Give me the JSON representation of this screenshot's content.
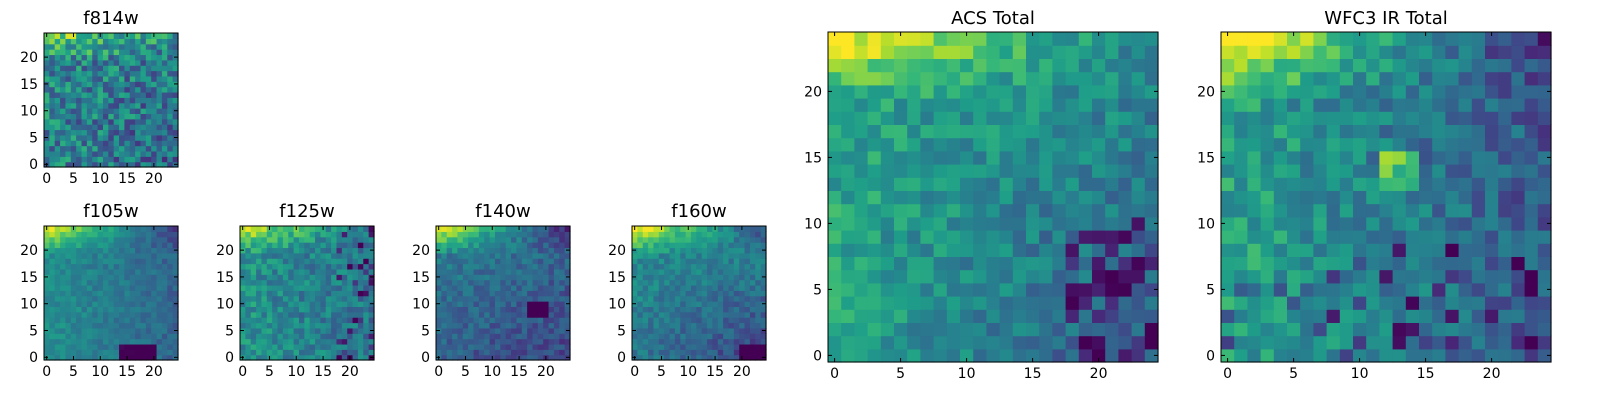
{
  "chart_data": [
    {
      "type": "heatmap",
      "title": "f814w",
      "xticks": [
        0,
        5,
        10,
        15,
        20
      ],
      "yticks": [
        0,
        5,
        10,
        15,
        20
      ],
      "xlim": [
        -0.5,
        24.5
      ],
      "ylim": [
        -0.5,
        24.5
      ],
      "grid_size": [
        25,
        25
      ],
      "colormap": "viridis",
      "pattern": "brightest along the top rows (y 22-24), noisy green field, darker pixels toward lower right"
    },
    {
      "type": "heatmap",
      "title": "f105w",
      "xticks": [
        0,
        5,
        10,
        15,
        20
      ],
      "yticks": [
        0,
        5,
        10,
        15,
        20
      ],
      "xlim": [
        -0.5,
        24.5
      ],
      "ylim": [
        -0.5,
        24.5
      ],
      "grid_size": [
        25,
        25
      ],
      "colormap": "viridis",
      "pattern": "yellow band at top left, smooth green center, dark purple block at bottom right (x 14-20, y 0-2)"
    },
    {
      "type": "heatmap",
      "title": "f125w",
      "xticks": [
        0,
        5,
        10,
        15,
        20
      ],
      "yticks": [
        0,
        5,
        10,
        15,
        20
      ],
      "xlim": [
        -0.5,
        24.5
      ],
      "ylim": [
        -0.5,
        24.5
      ],
      "grid_size": [
        25,
        25
      ],
      "colormap": "viridis",
      "pattern": "yellow top edge, mottled green-teal field, scattered dark pixels on right side"
    },
    {
      "type": "heatmap",
      "title": "f140w",
      "xticks": [
        0,
        5,
        10,
        15,
        20
      ],
      "yticks": [
        0,
        5,
        10,
        15,
        20
      ],
      "xlim": [
        -0.5,
        24.5
      ],
      "ylim": [
        -0.5,
        24.5
      ],
      "grid_size": [
        25,
        25
      ],
      "colormap": "viridis",
      "pattern": "bright yellow top-left corner, teal-blue lower half, dark clusters near x 17-20, y 8-10"
    },
    {
      "type": "heatmap",
      "title": "f160w",
      "xticks": [
        0,
        5,
        10,
        15,
        20
      ],
      "yticks": [
        0,
        5,
        10,
        15,
        20
      ],
      "xlim": [
        -0.5,
        24.5
      ],
      "ylim": [
        -0.5,
        24.5
      ],
      "grid_size": [
        25,
        25
      ],
      "colormap": "viridis",
      "pattern": "yellow top rows, gradient to teal and blue toward bottom right, dark purple bottom right corner"
    },
    {
      "type": "heatmap",
      "title": "ACS Total",
      "xticks": [
        0,
        5,
        10,
        15,
        20
      ],
      "yticks": [
        0,
        5,
        10,
        15,
        20
      ],
      "xlim": [
        -0.5,
        24.5
      ],
      "ylim": [
        -0.5,
        24.5
      ],
      "grid_size": [
        25,
        25
      ],
      "colormap": "viridis",
      "pattern": "yellow top rows (x 0-12), green left side, blue-purple pixels concentrated at lower right (x 18-24, y 0-10)"
    },
    {
      "type": "heatmap",
      "title": "WFC3 IR Total",
      "xticks": [
        0,
        5,
        10,
        15,
        20
      ],
      "yticks": [
        0,
        5,
        10,
        15,
        20
      ],
      "xlim": [
        -0.5,
        24.5
      ],
      "ylim": [
        -0.5,
        24.5
      ],
      "grid_size": [
        25,
        25
      ],
      "colormap": "viridis",
      "pattern": "yellow top-left, bright spot near x 13, y 14, teal-blue bottom with scattered dark pixels"
    }
  ],
  "colors": {
    "viridis_low": "#440154",
    "viridis_mid": "#21918c",
    "viridis_high": "#fde725"
  }
}
